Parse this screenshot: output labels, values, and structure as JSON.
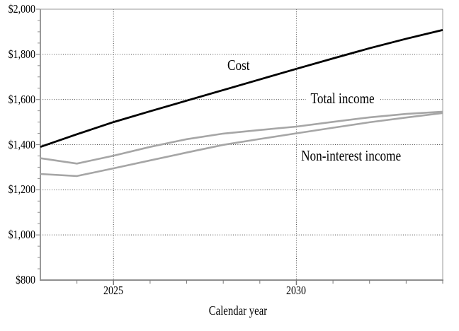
{
  "chart_data": {
    "type": "line",
    "title": "",
    "xlabel": "Calendar year",
    "ylabel": "",
    "x": [
      2023,
      2024,
      2025,
      2026,
      2027,
      2028,
      2029,
      2030,
      2031,
      2032,
      2033,
      2034
    ],
    "series": [
      {
        "name": "Cost",
        "color": "#000000",
        "line_width": 2.8,
        "values": [
          1390,
          1446,
          1500,
          1548,
          1595,
          1642,
          1689,
          1736,
          1782,
          1827,
          1869,
          1908
        ]
      },
      {
        "name": "Total income",
        "color": "#a6a6a6",
        "line_width": 2.6,
        "values": [
          1340,
          1316,
          1351,
          1390,
          1424,
          1449,
          1465,
          1480,
          1501,
          1521,
          1536,
          1546
        ]
      },
      {
        "name": "Non-interest income",
        "color": "#a6a6a6",
        "line_width": 2.6,
        "values": [
          1270,
          1261,
          1295,
          1330,
          1365,
          1399,
          1425,
          1450,
          1475,
          1499,
          1520,
          1540
        ]
      }
    ],
    "xlim": [
      2023,
      2034
    ],
    "ylim": [
      800,
      2000
    ],
    "y_ticks": [
      {
        "value": 800,
        "label": "$800"
      },
      {
        "value": 1000,
        "label": "$1,000"
      },
      {
        "value": 1200,
        "label": "$1,200"
      },
      {
        "value": 1400,
        "label": "$1,400"
      },
      {
        "value": 1600,
        "label": "$1,600"
      },
      {
        "value": 1800,
        "label": "$1,800"
      },
      {
        "value": 2000,
        "label": "$2,000"
      }
    ],
    "y_minor_tick_step": 50,
    "x_major_ticks": [
      {
        "value": 2025,
        "label": "2025"
      },
      {
        "value": 2030,
        "label": "2030"
      }
    ],
    "x_minor_ticks": [
      2024,
      2026,
      2027,
      2028,
      2029,
      2031,
      2032,
      2033,
      2034
    ],
    "grid": {
      "horizontal_dotted": true,
      "vertical_dotted_at": [
        2025,
        2030
      ],
      "grid_color": "#4d4d4d"
    },
    "legend": "inline-labels",
    "annotations": [
      {
        "text": "Cost"
      },
      {
        "text": "Total income"
      },
      {
        "text": "Non-interest income"
      }
    ],
    "colors": {
      "cost_line": "#000000",
      "income_lines": "#a6a6a6",
      "axis": "#8f8f8f"
    }
  }
}
